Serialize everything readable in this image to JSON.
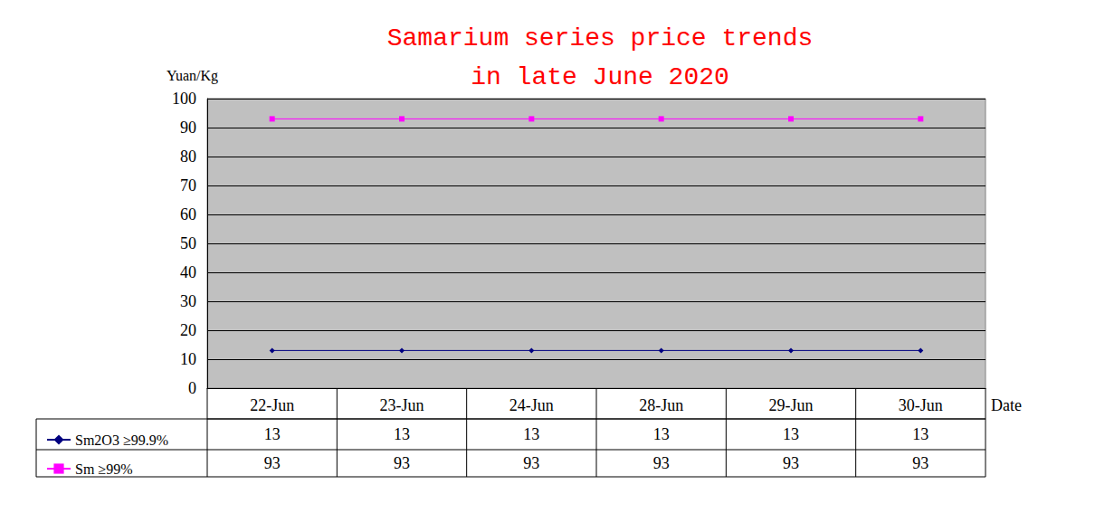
{
  "chart_data": {
    "type": "line",
    "title": "Samarium series price trends\nin late June 2020",
    "x_label": "Date",
    "y_label": "Yuan/Kg",
    "categories": [
      "22-Jun",
      "23-Jun",
      "24-Jun",
      "28-Jun",
      "29-Jun",
      "30-Jun"
    ],
    "series": [
      {
        "name": "Sm2O3 ≥99.9%",
        "color": "#000080",
        "marker": "diamond",
        "values": [
          13,
          13,
          13,
          13,
          13,
          13
        ]
      },
      {
        "name": "Sm ≥99%",
        "color": "#ff00ff",
        "marker": "square",
        "values": [
          93,
          93,
          93,
          93,
          93,
          93
        ]
      }
    ],
    "ylim": [
      0,
      100
    ],
    "yticks": [
      0,
      10,
      20,
      30,
      40,
      50,
      60,
      70,
      80,
      90,
      100
    ],
    "grid": true
  }
}
